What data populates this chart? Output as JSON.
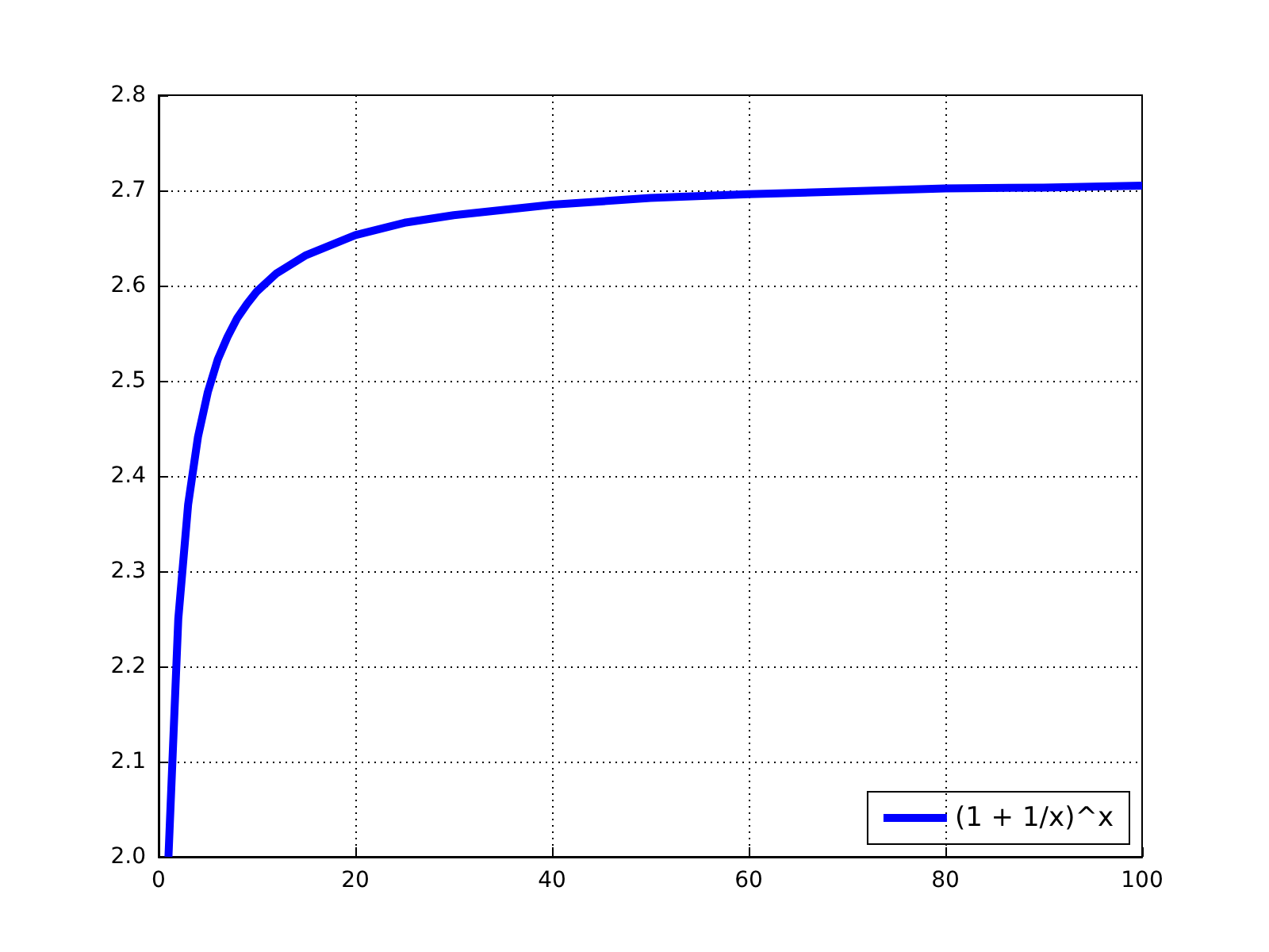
{
  "chart_data": {
    "type": "line",
    "x": [
      1,
      2,
      3,
      4,
      5,
      6,
      7,
      8,
      9,
      10,
      12,
      15,
      20,
      25,
      30,
      40,
      50,
      60,
      70,
      80,
      90,
      100
    ],
    "series": [
      {
        "name": "(1 + 1/x)^x",
        "color": "#0000ff",
        "values": [
          2.0,
          2.25,
          2.37,
          2.441,
          2.488,
          2.522,
          2.546,
          2.566,
          2.581,
          2.594,
          2.613,
          2.632,
          2.653,
          2.666,
          2.674,
          2.685,
          2.692,
          2.696,
          2.699,
          2.702,
          2.703,
          2.705
        ]
      }
    ],
    "xlim": [
      0,
      100
    ],
    "xticks": [
      0,
      20,
      40,
      60,
      80,
      100
    ],
    "ylim": [
      2.0,
      2.8
    ],
    "yticks": [
      {
        "value": 2,
        "label": "2.0"
      },
      2.1,
      2.2,
      2.3,
      2.4,
      2.5,
      2.6,
      2.7,
      2.8
    ],
    "grid": true,
    "legend": "bottom right",
    "marker": "none",
    "line_style": "solid"
  }
}
